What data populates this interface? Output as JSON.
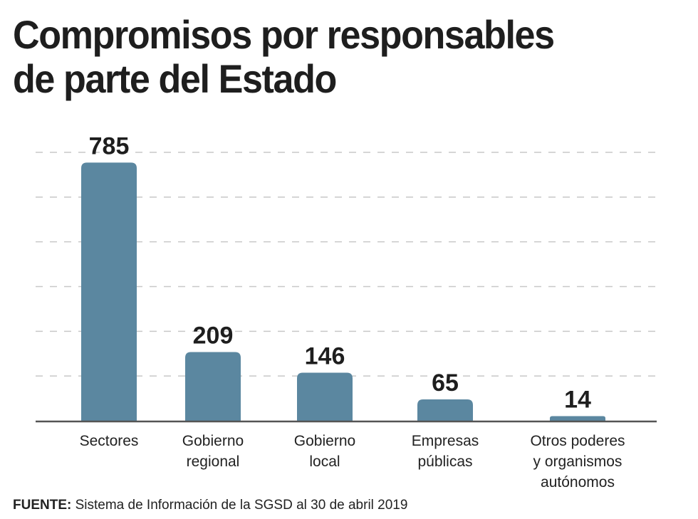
{
  "chart_data": {
    "type": "bar",
    "title": "Compromisos por responsables de parte del Estado",
    "title_lines": [
      "Compromisos por responsables",
      "de parte del Estado"
    ],
    "categories": [
      [
        "Sectores"
      ],
      [
        "Gobierno",
        "regional"
      ],
      [
        "Gobierno",
        "local"
      ],
      [
        "Empresas",
        "públicas"
      ],
      [
        "Otros poderes",
        "y organismos",
        "autónomos"
      ]
    ],
    "category_names": [
      "Sectores",
      "Gobierno regional",
      "Gobierno local",
      "Empresas públicas",
      "Otros poderes y organismos autónomos"
    ],
    "values": [
      785,
      209,
      146,
      65,
      14
    ],
    "data_labels": [
      "785",
      "209",
      "146",
      "65",
      "14"
    ],
    "xlabel": "",
    "ylabel": "",
    "ylim": [
      0,
      816
    ],
    "gridlines": 6,
    "grid": true,
    "y_tick_labels_shown": false,
    "legend": "none",
    "bar_color": "#5b87a0",
    "axis_color": "#555555",
    "grid_color": "#c8c8c8"
  },
  "source": {
    "label": "FUENTE:",
    "text": "Sistema de Información de la SGSD al 30 de abril 2019"
  }
}
